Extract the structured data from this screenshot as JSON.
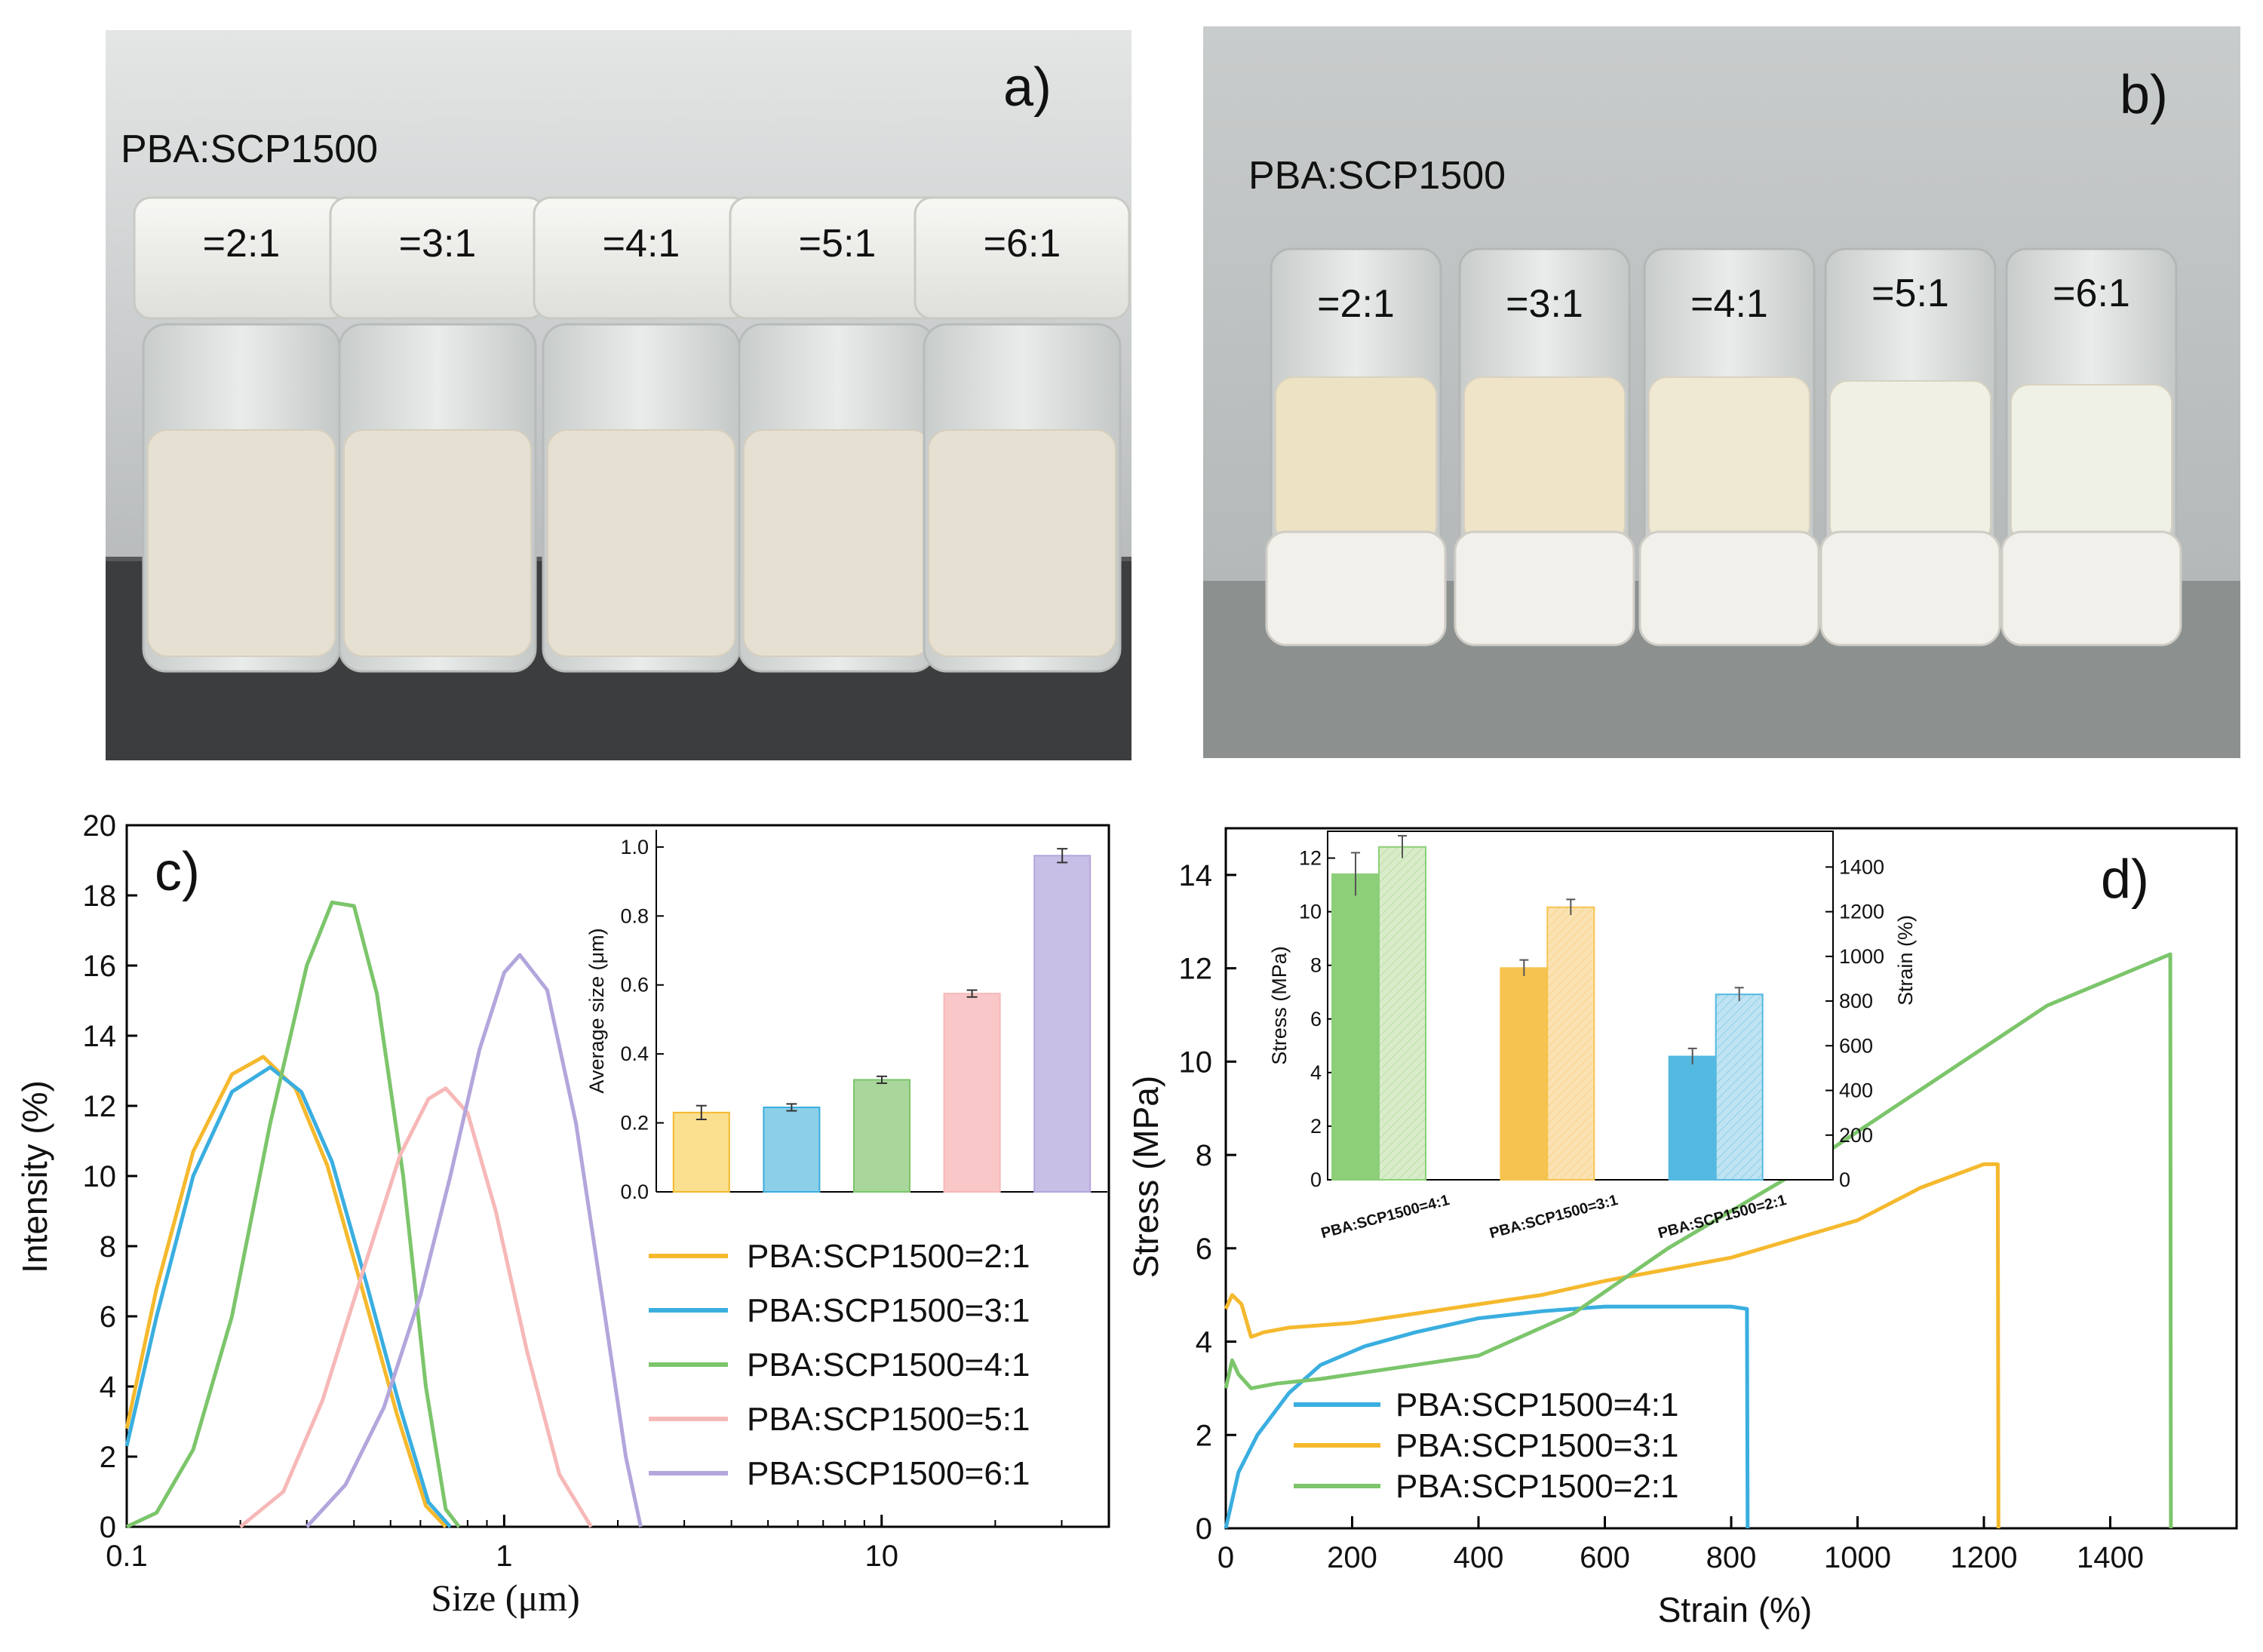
{
  "photos": [
    {
      "panel": "a)",
      "label": "PBA:SCP1500",
      "ratios": [
        "=2:1",
        "=3:1",
        "=4:1",
        "=5:1",
        "=6:1"
      ],
      "liquid_color": "#e6e0d2",
      "background_color": "#cfd2d3"
    },
    {
      "panel": "b)",
      "label": "PBA:SCP1500",
      "ratios": [
        "=2:1",
        "=3:1",
        "=4:1",
        "=5:1",
        "=6:1"
      ],
      "liquid_colors": [
        "#ece2c4",
        "#efe4c8",
        "#efe8d2",
        "#f0f1e4",
        "#f0f1e6"
      ],
      "background_color": "#bfc3c3"
    }
  ],
  "chart_data": [
    {
      "panel": "c)",
      "type": "line",
      "xscale": "log",
      "xlim": [
        0.1,
        40
      ],
      "ylim": [
        0,
        20
      ],
      "xlabel": "Size (μm)",
      "ylabel": "Intensity (%)",
      "xticks": [
        0.1,
        1,
        10
      ],
      "xtick_labels": [
        "0.1",
        "1",
        "10"
      ],
      "yticks": [
        0,
        2,
        4,
        6,
        8,
        10,
        12,
        14,
        16,
        18,
        20
      ],
      "ytick_labels": [
        "0",
        "2",
        "4",
        "6",
        "8",
        "10",
        "12",
        "14",
        "16",
        "18",
        "20"
      ],
      "series": [
        {
          "name": "PBA:SCP1500=2:1",
          "color": "#f5b92e",
          "x": [
            0.1,
            0.12,
            0.15,
            0.19,
            0.23,
            0.28,
            0.34,
            0.42,
            0.52,
            0.62,
            0.7
          ],
          "y": [
            2.8,
            6.8,
            10.7,
            12.9,
            13.4,
            12.5,
            10.3,
            6.8,
            3.2,
            0.6,
            0
          ]
        },
        {
          "name": "PBA:SCP1500=3:1",
          "color": "#3aaee0",
          "x": [
            0.1,
            0.12,
            0.15,
            0.19,
            0.24,
            0.29,
            0.35,
            0.43,
            0.53,
            0.63,
            0.72
          ],
          "y": [
            2.3,
            6.0,
            10.0,
            12.4,
            13.1,
            12.4,
            10.4,
            7.0,
            3.4,
            0.7,
            0
          ]
        },
        {
          "name": "PBA:SCP1500=4:1",
          "color": "#7cc56b",
          "x": [
            0.1,
            0.12,
            0.15,
            0.19,
            0.24,
            0.3,
            0.35,
            0.4,
            0.46,
            0.54,
            0.62,
            0.7,
            0.76
          ],
          "y": [
            0,
            0.4,
            2.2,
            6.0,
            11.5,
            16.0,
            17.8,
            17.7,
            15.2,
            10.0,
            4.0,
            0.5,
            0
          ]
        },
        {
          "name": "PBA:SCP1500=5:1",
          "color": "#f7b8b8",
          "x": [
            0.2,
            0.26,
            0.33,
            0.42,
            0.53,
            0.63,
            0.7,
            0.8,
            0.95,
            1.15,
            1.4,
            1.7
          ],
          "y": [
            0,
            1.0,
            3.6,
            7.2,
            10.6,
            12.2,
            12.5,
            11.8,
            9.0,
            5.0,
            1.5,
            0
          ]
        },
        {
          "name": "PBA:SCP1500=6:1",
          "color": "#b3a6dc",
          "x": [
            0.3,
            0.38,
            0.48,
            0.6,
            0.72,
            0.86,
            1.0,
            1.1,
            1.3,
            1.55,
            1.85,
            2.1,
            2.3
          ],
          "y": [
            0,
            1.2,
            3.4,
            6.6,
            10.0,
            13.6,
            15.8,
            16.3,
            15.3,
            11.5,
            6.0,
            2.0,
            0
          ]
        }
      ],
      "inset": {
        "type": "bar",
        "ylabel": "Average size (μm)",
        "ylim": [
          0,
          1.05
        ],
        "yticks": [
          0.0,
          0.2,
          0.4,
          0.6,
          0.8,
          1.0
        ],
        "ytick_labels": [
          "0.0",
          "0.2",
          "0.4",
          "0.6",
          "0.8",
          "1.0"
        ],
        "values": [
          0.23,
          0.245,
          0.325,
          0.575,
          0.975
        ],
        "errors": [
          0.02,
          0.01,
          0.01,
          0.01,
          0.02
        ],
        "colors": [
          "#f9df8e",
          "#8ccfe8",
          "#a9d69b",
          "#f9c7c7",
          "#c7bfe6"
        ]
      }
    },
    {
      "panel": "d)",
      "type": "line",
      "xlim": [
        0,
        1600
      ],
      "ylim": [
        0,
        15
      ],
      "xlabel": "Strain (%)",
      "ylabel": "Stress (MPa)",
      "xticks": [
        0,
        200,
        400,
        600,
        800,
        1000,
        1200,
        1400
      ],
      "xtick_labels": [
        "0",
        "200",
        "400",
        "600",
        "800",
        "1000",
        "1200",
        "1400"
      ],
      "yticks": [
        0,
        2,
        4,
        6,
        8,
        10,
        12,
        14
      ],
      "ytick_labels": [
        "0",
        "2",
        "4",
        "6",
        "8",
        "10",
        "12",
        "14"
      ],
      "series": [
        {
          "name": "PBA:SCP1500=4:1",
          "color": "#3aaee0",
          "x": [
            0,
            20,
            50,
            100,
            150,
            220,
            300,
            400,
            500,
            600,
            700,
            800,
            825,
            826
          ],
          "y": [
            0,
            1.2,
            2.0,
            2.9,
            3.5,
            3.9,
            4.2,
            4.5,
            4.65,
            4.75,
            4.75,
            4.75,
            4.7,
            0
          ]
        },
        {
          "name": "PBA:SCP1500=3:1",
          "color": "#f5b92e",
          "x": [
            0,
            10,
            25,
            40,
            60,
            100,
            200,
            300,
            400,
            500,
            600,
            800,
            1000,
            1100,
            1200,
            1222,
            1223
          ],
          "y": [
            4.7,
            5.0,
            4.8,
            4.1,
            4.2,
            4.3,
            4.4,
            4.6,
            4.8,
            5.0,
            5.3,
            5.8,
            6.6,
            7.3,
            7.8,
            7.8,
            0
          ]
        },
        {
          "name": "PBA:SCP1500=2:1",
          "color": "#7cc56b",
          "x": [
            0,
            10,
            20,
            40,
            80,
            150,
            250,
            400,
            550,
            700,
            900,
            1100,
            1300,
            1495,
            1496
          ],
          "y": [
            3.0,
            3.6,
            3.3,
            3.0,
            3.1,
            3.2,
            3.4,
            3.7,
            4.6,
            6.0,
            7.6,
            9.4,
            11.2,
            12.3,
            0
          ]
        }
      ],
      "inset": {
        "type": "bar",
        "categories": [
          "PBA:SCP1500=4:1",
          "PBA:SCP1500=3:1",
          "PBA:SCP1500=2:1"
        ],
        "ylabel_left": "Stress (MPa)",
        "ylabel_right": "Strain (%)",
        "ylim_left": [
          0,
          13
        ],
        "ylim_right": [
          0,
          1560
        ],
        "yticks_left": [
          0,
          2,
          4,
          6,
          8,
          10,
          12
        ],
        "ytick_labels_left": [
          "0",
          "2",
          "4",
          "6",
          "8",
          "10",
          "12"
        ],
        "yticks_right": [
          0,
          200,
          400,
          600,
          800,
          1000,
          1200,
          1400
        ],
        "ytick_labels_right": [
          "0",
          "200",
          "400",
          "600",
          "800",
          "1000",
          "1200",
          "1400"
        ],
        "stress": [
          11.4,
          7.9,
          4.6
        ],
        "stress_err": [
          0.8,
          0.3,
          0.3
        ],
        "strain": [
          1490,
          1220,
          830
        ],
        "strain_err": [
          50,
          35,
          30
        ],
        "stress_colors": [
          "#8ccf78",
          "#f7c350",
          "#53b9e0"
        ],
        "strain_colors": [
          "#d9ecc9",
          "#fbe2b3",
          "#bfe3f2"
        ]
      }
    }
  ]
}
